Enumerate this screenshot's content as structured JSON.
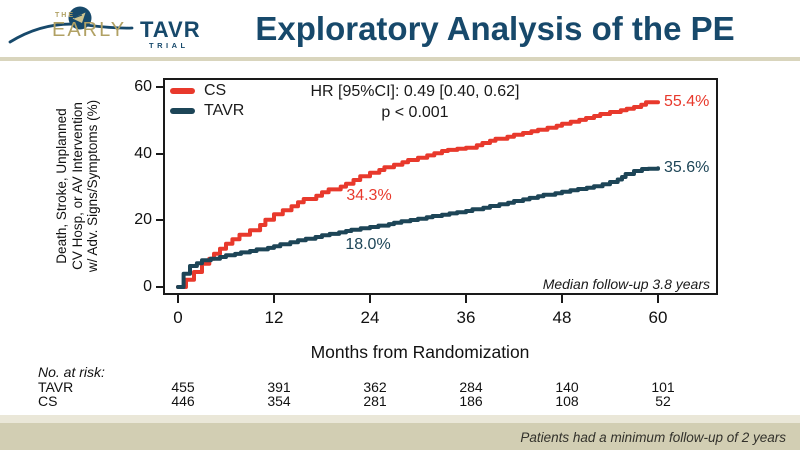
{
  "header": {
    "logo": {
      "the": "THE",
      "early": "EARLY",
      "tavr": "TAVR",
      "trial": "TRIAL"
    },
    "title": "Exploratory Analysis of the PE"
  },
  "colors": {
    "accent_navy": "#17496b",
    "accent_gold": "#b1a164",
    "cs_red": "#e8392c",
    "tavr_navy": "#1d4557",
    "banner_beige": "#d2ceb3"
  },
  "chart_data": {
    "type": "line",
    "subtype": "kaplan-meier-cumulative-incidence",
    "xlabel": "Months from Randomization",
    "ylabel_lines": [
      "Death, Stroke, Unplanned",
      "CV Hosp, or AV Intervention",
      "w/ Adv. Signs/Symptoms (%)"
    ],
    "xticks": [
      0,
      12,
      24,
      36,
      48,
      60
    ],
    "yticks": [
      0,
      20,
      40,
      60
    ],
    "xlim": [
      0,
      67
    ],
    "ylim": [
      0,
      64
    ],
    "grid": false,
    "legend_position": "top-left-inside",
    "stats": {
      "hr_line": "HR [95%CI]: 0.49 [0.40, 0.62]",
      "p_line": "p < 0.001"
    },
    "followup_note": "Median follow-up 3.8 years",
    "series": [
      {
        "name": "CS",
        "color": "#e8392c",
        "mid_label": "34.3%",
        "final_label": "55.4%",
        "points": [
          [
            0,
            0
          ],
          [
            1,
            2.2
          ],
          [
            2,
            4.5
          ],
          [
            3,
            7
          ],
          [
            4.5,
            10
          ],
          [
            6,
            13
          ],
          [
            9,
            17
          ],
          [
            12,
            21.8
          ],
          [
            15,
            25.4
          ],
          [
            18,
            28.4
          ],
          [
            21,
            31
          ],
          [
            24,
            34.3
          ],
          [
            27,
            36.7
          ],
          [
            30,
            38.8
          ],
          [
            33,
            40.8
          ],
          [
            36,
            41.8
          ],
          [
            39,
            43.9
          ],
          [
            42,
            45.7
          ],
          [
            45,
            47.2
          ],
          [
            48,
            49
          ],
          [
            51,
            50.7
          ],
          [
            54,
            52.5
          ],
          [
            57,
            54
          ],
          [
            58.5,
            55.4
          ],
          [
            60,
            55.4
          ]
        ]
      },
      {
        "name": "TAVR",
        "color": "#1d4557",
        "mid_label": "18.0%",
        "final_label": "35.6%",
        "points": [
          [
            0,
            0
          ],
          [
            0.7,
            4
          ],
          [
            1.5,
            6.3
          ],
          [
            3,
            8
          ],
          [
            6,
            9.5
          ],
          [
            9,
            10.8
          ],
          [
            12,
            12.2
          ],
          [
            15,
            14
          ],
          [
            18,
            15.5
          ],
          [
            21,
            16.8
          ],
          [
            24,
            18
          ],
          [
            27,
            19.3
          ],
          [
            30,
            20.5
          ],
          [
            33,
            21.7
          ],
          [
            36,
            22.8
          ],
          [
            39,
            24.3
          ],
          [
            42,
            25.8
          ],
          [
            45,
            27.2
          ],
          [
            48,
            28.6
          ],
          [
            50,
            29.4
          ],
          [
            52,
            30.2
          ],
          [
            54,
            31.5
          ],
          [
            55.5,
            33
          ],
          [
            57,
            34.8
          ],
          [
            58,
            35.4
          ],
          [
            60,
            35.6
          ]
        ]
      }
    ],
    "at_risk": {
      "label": "No. at risk:",
      "rows": [
        {
          "name": "TAVR",
          "values": [
            "455",
            "391",
            "362",
            "284",
            "140",
            "101"
          ]
        },
        {
          "name": "CS",
          "values": [
            "446",
            "354",
            "281",
            "186",
            "108",
            "52"
          ]
        }
      ]
    }
  },
  "footer": {
    "note": "Patients had a minimum follow-up of 2 years"
  }
}
